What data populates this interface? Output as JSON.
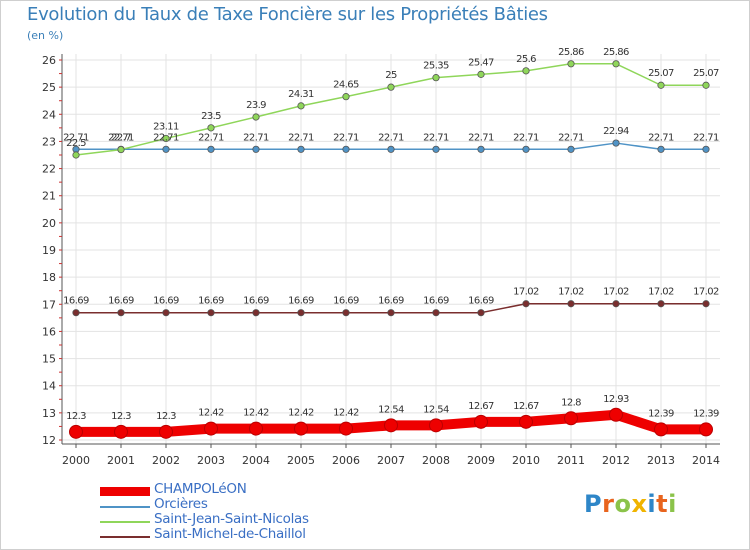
{
  "chart_data": {
    "type": "line",
    "title": "Evolution du Taux de Taxe Foncière sur les Propriétés Bâties",
    "ylabel": "(en %)",
    "ylim": [
      12,
      26
    ],
    "yticks": [
      12,
      13,
      14,
      15,
      16,
      17,
      18,
      19,
      20,
      21,
      22,
      23,
      24,
      25,
      26
    ],
    "categories": [
      "2000",
      "2001",
      "2002",
      "2003",
      "2004",
      "2005",
      "2006",
      "2007",
      "2008",
      "2009",
      "2010",
      "2011",
      "2012",
      "2013",
      "2014"
    ],
    "series": [
      {
        "name": "CHAMPOLéON",
        "color": "#ee0000",
        "values": [
          12.3,
          12.3,
          12.3,
          12.42,
          12.42,
          12.42,
          12.42,
          12.54,
          12.54,
          12.67,
          12.67,
          12.8,
          12.93,
          12.39,
          12.39
        ],
        "labels": [
          "12.3",
          "12.3",
          "12.3",
          "12.42",
          "12.42",
          "12.42",
          "12.42",
          "12.54",
          "12.54",
          "12.67",
          "12.67",
          "12.8",
          "12.93",
          "12.39",
          "12.39"
        ]
      },
      {
        "name": "Orcières",
        "color": "#4f93c6",
        "values": [
          22.71,
          22.71,
          22.71,
          22.71,
          22.71,
          22.71,
          22.71,
          22.71,
          22.71,
          22.71,
          22.71,
          22.71,
          22.94,
          22.71,
          22.71
        ],
        "labels": [
          "22.71",
          "22.71",
          "22.71",
          "22.71",
          "22.71",
          "22.71",
          "22.71",
          "22.71",
          "22.71",
          "22.71",
          "22.71",
          "22.71",
          "22.94",
          "22.71",
          "22.71"
        ]
      },
      {
        "name": "Saint-Jean-Saint-Nicolas",
        "color": "#8fd65a",
        "values": [
          22.5,
          22.7,
          23.11,
          23.5,
          23.9,
          24.31,
          24.65,
          25.0,
          25.35,
          25.47,
          25.6,
          25.86,
          25.86,
          25.07,
          25.07
        ],
        "labels": [
          "22.5",
          "22.7",
          "23.11",
          "23.5",
          "23.9",
          "24.31",
          "24.65",
          "25",
          "25.35",
          "25.47",
          "25.6",
          "25.86",
          "25.86",
          "25.07",
          "25.07"
        ]
      },
      {
        "name": "Saint-Michel-de-Chaillol",
        "color": "#7a2e2e",
        "values": [
          16.69,
          16.69,
          16.69,
          16.69,
          16.69,
          16.69,
          16.69,
          16.69,
          16.69,
          16.69,
          17.02,
          17.02,
          17.02,
          17.02,
          17.02
        ],
        "labels": [
          "16.69",
          "16.69",
          "16.69",
          "16.69",
          "16.69",
          "16.69",
          "16.69",
          "16.69",
          "16.69",
          "16.69",
          "17.02",
          "17.02",
          "17.02",
          "17.02",
          "17.02"
        ]
      }
    ]
  },
  "legend": {
    "items": [
      "CHAMPOLéON",
      "Orcières",
      "Saint-Jean-Saint-Nicolas",
      "Saint-Michel-de-Chaillol"
    ]
  },
  "branding": {
    "logo_text": "Proxiti",
    "logo_colors": [
      "#2e86c8",
      "#e8641e",
      "#8bc34a",
      "#f0b400",
      "#2e86c8",
      "#e8641e",
      "#8bc34a"
    ]
  }
}
